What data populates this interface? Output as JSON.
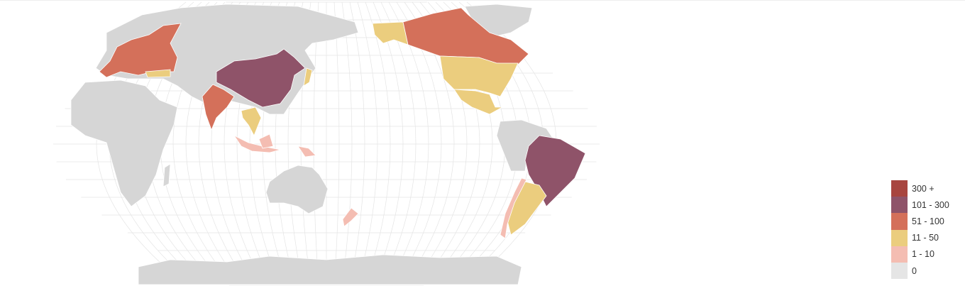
{
  "map": {
    "type": "choropleth",
    "projection": "robinson",
    "center": "pacific",
    "graticule": true,
    "default_color": "#d6d6d6",
    "regions": [
      {
        "name": "China",
        "class": "101 - 300"
      },
      {
        "name": "Brazil",
        "class": "101 - 300"
      },
      {
        "name": "India",
        "class": "51 - 100"
      },
      {
        "name": "Canada",
        "class": "51 - 100"
      },
      {
        "name": "Western Europe",
        "class": "51 - 100"
      },
      {
        "name": "United States",
        "class": "11 - 50"
      },
      {
        "name": "Mexico",
        "class": "11 - 50"
      },
      {
        "name": "Argentina",
        "class": "11 - 50"
      },
      {
        "name": "Turkey",
        "class": "11 - 50"
      },
      {
        "name": "Southeast Asia",
        "class": "11 - 50"
      },
      {
        "name": "Japan",
        "class": "11 - 50"
      },
      {
        "name": "Indonesia",
        "class": "1 - 10"
      },
      {
        "name": "Chile",
        "class": "1 - 10"
      },
      {
        "name": "New Zealand",
        "class": "1 - 10"
      },
      {
        "name": "Papua New Guinea",
        "class": "1 - 10"
      }
    ]
  },
  "legend": {
    "position": "bottom-right",
    "items": [
      {
        "label": "300 +",
        "color": "#a8453f"
      },
      {
        "label": "101 - 300",
        "color": "#8f5369"
      },
      {
        "label": "51 - 100",
        "color": "#d4705a"
      },
      {
        "label": "11 - 50",
        "color": "#ebcd7e"
      },
      {
        "label": "1 - 10",
        "color": "#f4bdb2"
      },
      {
        "label": "0",
        "color": "#e5e5e5"
      }
    ]
  }
}
